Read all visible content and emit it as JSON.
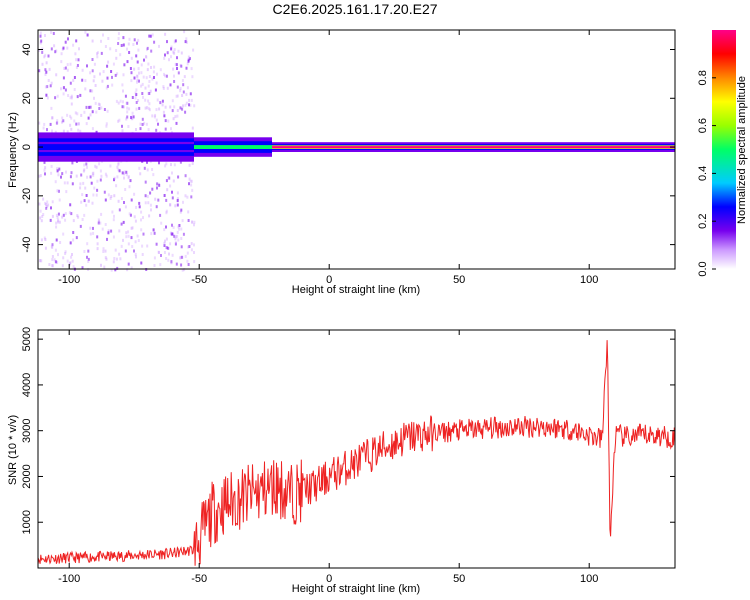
{
  "title": "C2E6.2025.161.17.20.E27",
  "chart_data": [
    {
      "type": "heatmap",
      "xlabel": "Height of straight line (km)",
      "ylabel": "Frequency (Hz)",
      "xlim": [
        -112,
        133
      ],
      "ylim": [
        -50,
        48
      ],
      "xticks": [
        -100,
        -50,
        0,
        50,
        100
      ],
      "yticks": [
        -40,
        -20,
        0,
        20,
        40
      ],
      "colorbar": {
        "label": "Normalized spectral amplitude",
        "range": [
          0,
          1
        ],
        "ticks": [
          0.0,
          0.2,
          0.4,
          0.6,
          0.8
        ],
        "colors": [
          "#ffffff",
          "#cc99ff",
          "#7700ee",
          "#0000ff",
          "#00ccff",
          "#00ff66",
          "#99ff00",
          "#ffff00",
          "#ff8800",
          "#ff0000",
          "#ff0088"
        ]
      },
      "ridge": {
        "frequency_hz": 0,
        "segments": [
          {
            "x": [
              -112,
              -52
            ],
            "amplitude": 0.25,
            "half_width_hz": 6
          },
          {
            "x": [
              -52,
              -22
            ],
            "amplitude": 0.45,
            "half_width_hz": 4
          },
          {
            "x": [
              -22,
              133
            ],
            "amplitude": 0.95,
            "half_width_hz": 2
          }
        ]
      },
      "noise_region": {
        "x": [
          -112,
          -52
        ],
        "amplitude": 0.2
      },
      "grid": false
    },
    {
      "type": "line",
      "xlabel": "Height of straight line (km)",
      "ylabel": "SNR (10 * v/v)",
      "xlim": [
        -112,
        133
      ],
      "ylim": [
        0,
        5200
      ],
      "xticks": [
        -100,
        -50,
        0,
        50,
        100
      ],
      "yticks": [
        1000,
        2000,
        3000,
        4000,
        5000
      ],
      "series": [
        {
          "color": "#ee2222",
          "x": [
            -112,
            -100,
            -80,
            -60,
            -52,
            -45,
            -40,
            -35,
            -30,
            -25,
            -20,
            -15,
            -10,
            -5,
            0,
            10,
            20,
            30,
            40,
            50,
            60,
            70,
            80,
            90,
            95,
            100,
            105,
            107,
            108,
            110,
            115,
            120,
            125,
            133
          ],
          "y": [
            200,
            220,
            260,
            320,
            400,
            1200,
            1400,
            1500,
            1600,
            1700,
            1800,
            1600,
            1700,
            1800,
            2000,
            2300,
            2600,
            2850,
            2950,
            3000,
            3050,
            3080,
            3100,
            3050,
            3000,
            2900,
            2800,
            5100,
            500,
            2900,
            2850,
            2900,
            2900,
            2850
          ]
        }
      ],
      "grid": false
    }
  ]
}
